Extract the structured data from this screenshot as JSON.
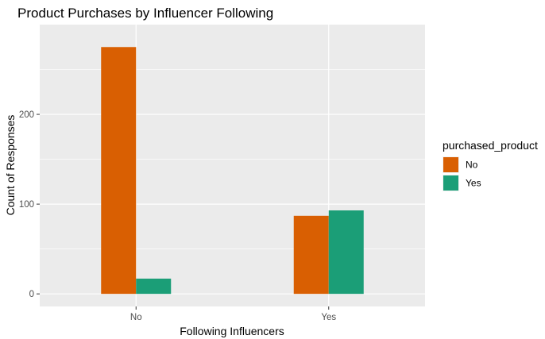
{
  "chart_data": {
    "type": "bar",
    "title": "Product Purchases by Influencer Following",
    "xlabel": "Following Influencers",
    "ylabel": "Count of Responses",
    "categories": [
      "No",
      "Yes"
    ],
    "series": [
      {
        "name": "No",
        "values": [
          275,
          87
        ],
        "color": "#D95F02"
      },
      {
        "name": "Yes",
        "values": [
          17,
          93
        ],
        "color": "#1B9E77"
      }
    ],
    "ylim": [
      -14,
      300
    ],
    "yticks": [
      0,
      100,
      200
    ],
    "grid": true,
    "legend": {
      "title": "purchased_product",
      "position": "right"
    },
    "panel_background": "#EBEBEB",
    "grid_color": "#FFFFFF"
  }
}
